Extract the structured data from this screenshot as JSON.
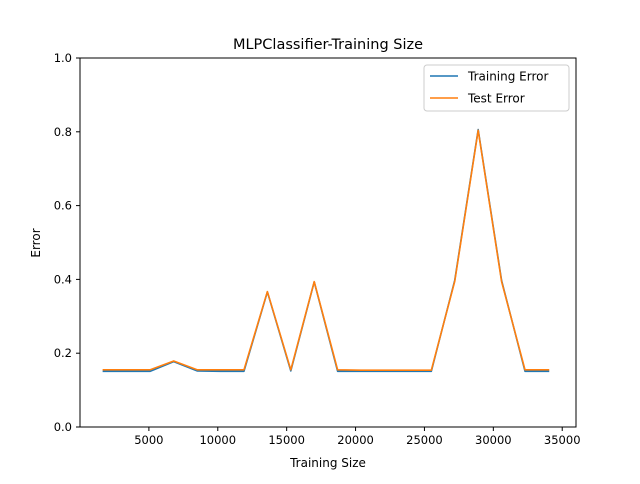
{
  "chart_data": {
    "type": "line",
    "title": "MLPClassifier-Training Size",
    "xlabel": "Training Size",
    "ylabel": "Error",
    "xlim": [
      0,
      36000
    ],
    "ylim": [
      0,
      1.0
    ],
    "xticks": [
      5000,
      10000,
      15000,
      20000,
      25000,
      30000,
      35000
    ],
    "yticks": [
      0.0,
      0.2,
      0.4,
      0.6,
      0.8,
      1.0
    ],
    "xtick_labels": [
      "5000",
      "10000",
      "15000",
      "20000",
      "25000",
      "30000",
      "35000"
    ],
    "ytick_labels": [
      "0.0",
      "0.2",
      "0.4",
      "0.6",
      "0.8",
      "1.0"
    ],
    "grid": false,
    "legend_position": "top-right",
    "series": [
      {
        "name": "Training Error",
        "color": "#1f77b4",
        "x": [
          1700,
          3400,
          5100,
          6800,
          8500,
          10200,
          11900,
          13600,
          15300,
          17000,
          18700,
          20400,
          22100,
          23800,
          25500,
          27200,
          28900,
          30600,
          32300,
          34000
        ],
        "y": [
          0.151,
          0.151,
          0.151,
          0.177,
          0.152,
          0.151,
          0.151,
          0.366,
          0.152,
          0.393,
          0.151,
          0.151,
          0.151,
          0.151,
          0.151,
          0.398,
          0.806,
          0.397,
          0.151,
          0.151
        ]
      },
      {
        "name": "Test Error",
        "color": "#ff7f0e",
        "x": [
          1700,
          3400,
          5100,
          6800,
          8500,
          10200,
          11900,
          13600,
          15300,
          17000,
          18700,
          20400,
          22100,
          23800,
          25500,
          27200,
          28900,
          30600,
          32300,
          34000
        ],
        "y": [
          0.155,
          0.155,
          0.155,
          0.179,
          0.155,
          0.155,
          0.155,
          0.367,
          0.155,
          0.394,
          0.155,
          0.154,
          0.154,
          0.154,
          0.154,
          0.395,
          0.804,
          0.394,
          0.155,
          0.155
        ]
      }
    ]
  }
}
